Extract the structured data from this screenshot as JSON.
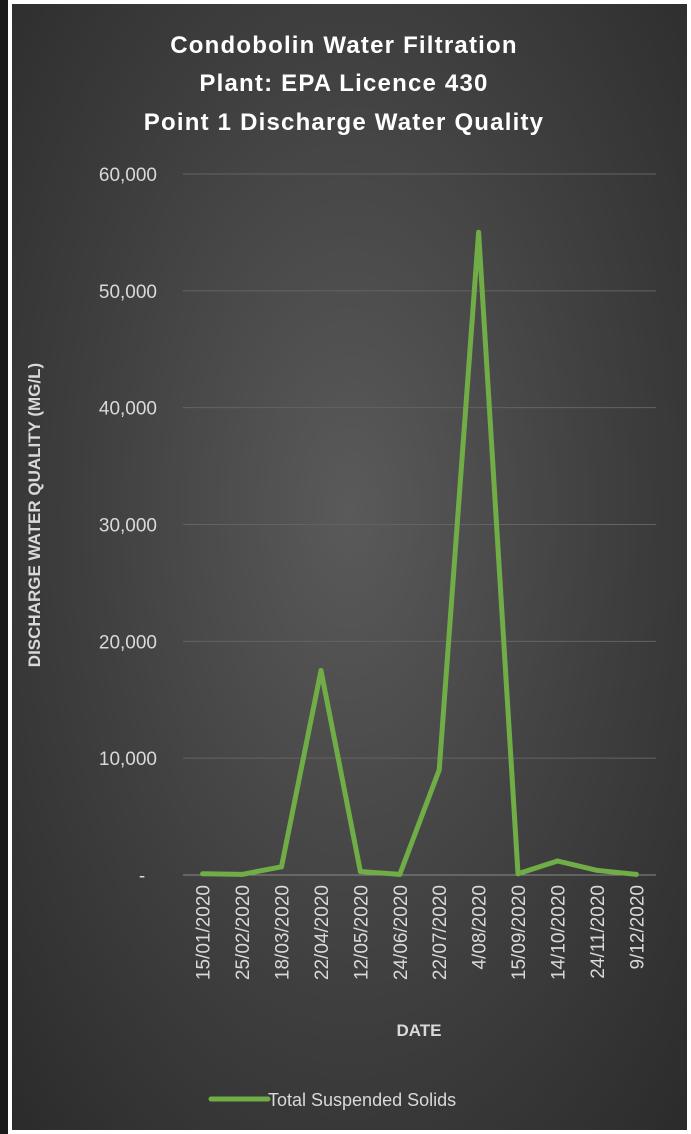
{
  "chart_data": {
    "type": "line",
    "title_lines": [
      "Condobolin Water Filtration",
      "Plant: EPA Licence 430",
      "Point 1 Discharge Water Quality"
    ],
    "xlabel": "DATE",
    "ylabel": "DISCHARGE WATER QUALITY (MG/L)",
    "categories": [
      "15/01/2020",
      "25/02/2020",
      "18/03/2020",
      "22/04/2020",
      "12/05/2020",
      "24/06/2020",
      "22/07/2020",
      "4/08/2020",
      "15/09/2020",
      "14/10/2020",
      "24/11/2020",
      "9/12/2020"
    ],
    "y_ticks": [
      {
        "value": 0,
        "label": "-"
      },
      {
        "value": 10000,
        "label": "10,000"
      },
      {
        "value": 20000,
        "label": "20,000"
      },
      {
        "value": 30000,
        "label": "30,000"
      },
      {
        "value": 40000,
        "label": "40,000"
      },
      {
        "value": 50000,
        "label": "50,000"
      },
      {
        "value": 60000,
        "label": "60,000"
      }
    ],
    "ylim": [
      0,
      60000
    ],
    "grid": true,
    "legend_position": "bottom",
    "series": [
      {
        "name": "Total Suspended Solids",
        "color": "#70ad47",
        "values": [
          100,
          50,
          700,
          17500,
          300,
          50,
          9000,
          55000,
          100,
          1200,
          400,
          50
        ]
      }
    ]
  }
}
